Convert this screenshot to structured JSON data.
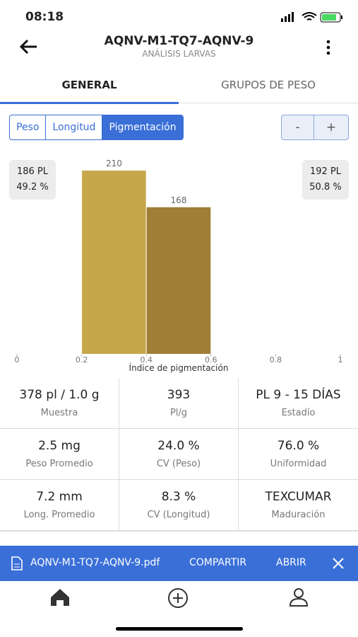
{
  "status": {
    "time": "08:18"
  },
  "header": {
    "title": "AQNV-M1-TQ7-AQNV-9",
    "subtitle": "ANÁLISIS LARVAS"
  },
  "tabs": [
    "GENERAL",
    "GRUPOS DE PESO"
  ],
  "segments": [
    "Peso",
    "Longitud",
    "Pigmentación"
  ],
  "zoom": [
    "-",
    "+"
  ],
  "left_box": [
    "186 PL",
    "49.2 %"
  ],
  "right_box": [
    "192 PL",
    "50.8 %"
  ],
  "chart": {
    "type": "histogram",
    "bins": [
      0.2,
      0.4,
      0.6
    ],
    "values": [
      210,
      168
    ],
    "colors": [
      "#c6a84a",
      "#9e7f35"
    ],
    "xlim": [
      0,
      1
    ],
    "xticks": [
      0,
      0.2,
      0.4,
      0.6,
      0.8,
      1
    ],
    "ylim": [
      0,
      210
    ],
    "xlabel": "Índice de pigmentación"
  },
  "stats": [
    [
      {
        "value": "378 pl / 1.0 g",
        "label": "Muestra"
      },
      {
        "value": "393",
        "label": "Pl/g"
      },
      {
        "value": "PL 9 - 15 DÍAS",
        "label": "Estadío"
      }
    ],
    [
      {
        "value": "2.5 mg",
        "label": "Peso Promedio"
      },
      {
        "value": "24.0 %",
        "label": "CV (Peso)"
      },
      {
        "value": "76.0 %",
        "label": "Uniformidad"
      }
    ],
    [
      {
        "value": "7.2 mm",
        "label": "Long. Promedio"
      },
      {
        "value": "8.3 %",
        "label": "CV (Longitud)"
      },
      {
        "value": "TEXCUMAR",
        "label": "Maduración"
      }
    ]
  ],
  "banner": {
    "file": "AQNV-M1-TQ7-AQNV-9.pdf",
    "share": "COMPARTIR",
    "open": "ABRIR"
  }
}
